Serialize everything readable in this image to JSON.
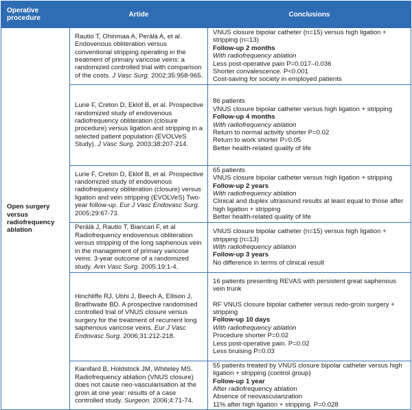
{
  "header": {
    "procedure": "Operative procedure",
    "article": "Artide",
    "conclusions": "Conclusions"
  },
  "procedure": "Open surgery versus radiofrequency ablation",
  "rows": [
    {
      "article": "Rautio T, Ohinmaa A, Perälä A, et al. Endovenous obliteration versus conventional stripping operating in the treatment of primary varicose veins: a randomized controlled trial with comparison of the costs. ",
      "journal": "J Vasc Surg.",
      "ref": " 2002;35:958-965.",
      "lines": [
        {
          "t": "VNUS closure bipolar catheter (n=15) versus high ligation + stripping (n=13)",
          "s": ""
        },
        {
          "t": "Follow-up 2 months",
          "s": "b"
        },
        {
          "t": "With radiofrequency ablation",
          "s": "i"
        },
        {
          "t": "Less post-operative pain P=0.017–0.036",
          "s": ""
        },
        {
          "t": "Shorter convalescence. P<0.001",
          "s": ""
        },
        {
          "t": "Cost-saving for society in employed patients",
          "s": ""
        }
      ]
    },
    {
      "article": "Lurie F, Creton D, Eklof B, et al. Prospective randomized study of endovenous radiofrequency obliteration (closure procedure) versus ligation and stripping in a selected patient population (EVOLVeS Study). ",
      "journal": "J Vasc Surg.",
      "ref": " 2003;38:207-214.",
      "lines": [
        {
          "t": "86 patients",
          "s": ""
        },
        {
          "t": "VNUS closure bipolar catheter versus high ligation + stripping",
          "s": ""
        },
        {
          "t": "Follow-up 4 months",
          "s": "b"
        },
        {
          "t": "With radiofrequency ablation",
          "s": "i"
        },
        {
          "t": "Return to normal activity shorter P=0.02",
          "s": ""
        },
        {
          "t": "Return to work shorter P=0.05",
          "s": ""
        },
        {
          "t": "Better health-related quality of life",
          "s": ""
        }
      ]
    },
    {
      "article": "Lurie F, Creton D, Eklof B, et al. Prospective randomized study of endovenous radiofrequency obliteration (closure) versus ligation and vein stripping (EVOLVeS) Two-year follow-up. ",
      "journal": "Eur J Vasc Endovasc Surg.",
      "ref": " 2005;29:67-73.",
      "lines": [
        {
          "t": "65 patients",
          "s": ""
        },
        {
          "t": "VNUS closure bipolar catheter versus high ligation + stripping",
          "s": ""
        },
        {
          "t": "Follow-up 2 years",
          "s": "b"
        },
        {
          "t": "With radiofrequency ablation",
          "s": "i"
        },
        {
          "t": "Clinical and duplex ultrasound results at least equal to those after high ligation + stripping",
          "s": ""
        },
        {
          "t": "Better health-related quality of life",
          "s": ""
        }
      ]
    },
    {
      "article": "Perälä J, Rautio T, Biancari F, et al Radiofrequency endovenous obliteration versus stripping of the long saphenous vein in the management of primary varicose veins: 3-year outcome of a randomized study. ",
      "journal": "Ann Vasc Surg.",
      "ref": " 2005;19:1-4.",
      "lines": [
        {
          "t": "VNUS closure bipolar catheter (n=15) versus high ligation + stripping (n=13)",
          "s": ""
        },
        {
          "t": "With radiofrequency ablation",
          "s": "i"
        },
        {
          "t": "Follow-up 3 years",
          "s": "b"
        },
        {
          "t": "No difference in terms of clinical result",
          "s": ""
        }
      ]
    },
    {
      "article": "Hinchliffe RJ, Ubhi J, Beech A, Ellison J, Braithwaite BD. A prospective randomised controlled trial of VNUS closure versus surgery for the treatment of recurrent long saphenous varicose veins. ",
      "journal": "Eur J Vasc Endovasc Surg.",
      "ref": " 2006;31:212-218.",
      "lines": [
        {
          "t": "16 patients presenting REVAS with persistent great saphenous vein trunk",
          "s": ""
        },
        {
          "t": "",
          "s": "gap"
        },
        {
          "t": "RF VNUS closure bipolar catheter versus redo-groin surgery + stripping",
          "s": ""
        },
        {
          "t": "Follow-up 10 days",
          "s": "b"
        },
        {
          "t": "With radiofrequency ablation",
          "s": "i"
        },
        {
          "t": "Procedure shorter P=0.02",
          "s": ""
        },
        {
          "t": "Less post-operative pain. P=0.02",
          "s": ""
        },
        {
          "t": "Less bruising P=0.03",
          "s": ""
        }
      ]
    },
    {
      "article": "Kianifard B, Holdstock JM, Whiteley MS. Radiofrequency ablation (VNUS closure) does not cause neo-vascularisation at the groin at one year: results of a case controlled study. ",
      "journal": "Surgeon.",
      "ref": " 2006;4:71-74.",
      "lines": [
        {
          "t": "55 patients treated by VNUS closure bipolar catheter versus high ligation + stripping (control group)",
          "s": ""
        },
        {
          "t": "Follow-up 1 year",
          "s": "b"
        },
        {
          "t": "After radiofrequency ablation",
          "s": ""
        },
        {
          "t": "Absence of neovascularization",
          "s": ""
        },
        {
          "t": "11% after high ligation + stripping. P=0.028",
          "s": ""
        }
      ]
    }
  ]
}
